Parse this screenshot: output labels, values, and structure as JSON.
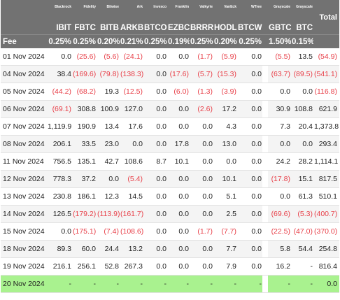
{
  "columns": [
    {
      "issuer": "Blackrock",
      "ticker": "IBIT",
      "fee": "0.25%"
    },
    {
      "issuer": "Fidelity",
      "ticker": "FBTC",
      "fee": "0.25%"
    },
    {
      "issuer": "Bitwise",
      "ticker": "BITB",
      "fee": "0.20%"
    },
    {
      "issuer": "Ark",
      "ticker": "ARKB",
      "fee": "0.21%"
    },
    {
      "issuer": "Invesco",
      "ticker": "BTCO",
      "fee": "0.25%"
    },
    {
      "issuer": "Franklin",
      "ticker": "EZBC",
      "fee": "0.19%"
    },
    {
      "issuer": "Valkyrie",
      "ticker": "BRRR",
      "fee": "0.25%"
    },
    {
      "issuer": "VanEck",
      "ticker": "HODL",
      "fee": "0.20%"
    },
    {
      "issuer": "WTree",
      "ticker": "BTCW",
      "fee": "0.25%"
    },
    {
      "issuer": "Grayscale",
      "ticker": "GBTC",
      "fee": "1.50%"
    },
    {
      "issuer": "Grayscale",
      "ticker": "BTC",
      "fee": "0.15%"
    }
  ],
  "fee_label": "Fee",
  "total_label": "Total",
  "rows": [
    {
      "date": "01 Nov 2024",
      "values": [
        "0.0",
        "(25.6)",
        "(5.6)",
        "(24.1)",
        "0.0",
        "0.0",
        "(1.7)",
        "(5.9)",
        "0.0",
        "(5.5)",
        "13.5"
      ],
      "total": "(54.9)"
    },
    {
      "date": "04 Nov 2024",
      "values": [
        "38.4",
        "(169.6)",
        "(79.8)",
        "(138.3)",
        "0.0",
        "(17.6)",
        "(5.7)",
        "(15.3)",
        "0.0",
        "(63.7)",
        "(89.5)"
      ],
      "total": "(541.1)"
    },
    {
      "date": "05 Nov 2024",
      "values": [
        "(44.2)",
        "(68.2)",
        "19.3",
        "(12.5)",
        "0.0",
        "(6.0)",
        "(1.3)",
        "(3.9)",
        "0.0",
        "0.0",
        "0.0"
      ],
      "total": "(116.8)"
    },
    {
      "date": "06 Nov 2024",
      "values": [
        "(69.1)",
        "308.8",
        "100.9",
        "127.0",
        "0.0",
        "0.0",
        "(2.6)",
        "17.2",
        "0.0",
        "30.9",
        "108.8"
      ],
      "total": "621.9"
    },
    {
      "date": "07 Nov 2024",
      "values": [
        "1,119.9",
        "190.9",
        "13.4",
        "17.6",
        "0.0",
        "0.0",
        "0.0",
        "4.3",
        "0.0",
        "7.3",
        "20.4"
      ],
      "total": "1,373.8"
    },
    {
      "date": "08 Nov 2024",
      "values": [
        "206.1",
        "33.5",
        "23.0",
        "0.0",
        "0.0",
        "17.8",
        "0.0",
        "13.0",
        "0.0",
        "0.0",
        "0.0"
      ],
      "total": "293.4"
    },
    {
      "date": "11 Nov 2024",
      "values": [
        "756.5",
        "135.1",
        "42.7",
        "108.6",
        "8.7",
        "10.1",
        "0.0",
        "0.0",
        "0.0",
        "24.2",
        "28.2"
      ],
      "total": "1,114.1"
    },
    {
      "date": "12 Nov 2024",
      "values": [
        "778.3",
        "37.2",
        "0.0",
        "(5.4)",
        "0.0",
        "0.0",
        "0.0",
        "10.1",
        "0.0",
        "(17.8)",
        "15.1"
      ],
      "total": "817.5"
    },
    {
      "date": "13 Nov 2024",
      "values": [
        "230.8",
        "186.1",
        "12.3",
        "14.5",
        "0.0",
        "0.0",
        "0.0",
        "5.1",
        "0.0",
        "0.0",
        "61.3"
      ],
      "total": "510.1"
    },
    {
      "date": "14 Nov 2024",
      "values": [
        "126.5",
        "(179.2)",
        "(113.9)",
        "(161.7)",
        "0.0",
        "0.0",
        "0.0",
        "2.5",
        "0.0",
        "(69.6)",
        "(5.3)"
      ],
      "total": "(400.7)"
    },
    {
      "date": "15 Nov 2024",
      "values": [
        "0.0",
        "(175.1)",
        "(7.4)",
        "(108.6)",
        "0.0",
        "0.0",
        "(1.7)",
        "(7.7)",
        "0.0",
        "(22.5)",
        "(47.0)"
      ],
      "total": "(370.0)"
    },
    {
      "date": "18 Nov 2024",
      "values": [
        "89.3",
        "60.0",
        "24.4",
        "13.2",
        "0.0",
        "0.0",
        "0.0",
        "7.7",
        "0.0",
        "5.8",
        "54.4"
      ],
      "total": "254.8"
    },
    {
      "date": "19 Nov 2024",
      "values": [
        "216.1",
        "256.1",
        "52.8",
        "267.3",
        "0.0",
        "0.0",
        "0.0",
        "7.9",
        "0.0",
        "16.2",
        "-"
      ],
      "total": "816.4"
    },
    {
      "date": "20 Nov 2024",
      "values": [
        "-",
        "-",
        "-",
        "-",
        "-",
        "-",
        "-",
        "-",
        "-",
        "-",
        "-"
      ],
      "total": "0.0",
      "pending": true
    }
  ],
  "colors": {
    "header_bg": "#727272",
    "negative": "#e8414a",
    "pending_row": "#a9f28f",
    "row_shade": "#f4f4f4"
  }
}
